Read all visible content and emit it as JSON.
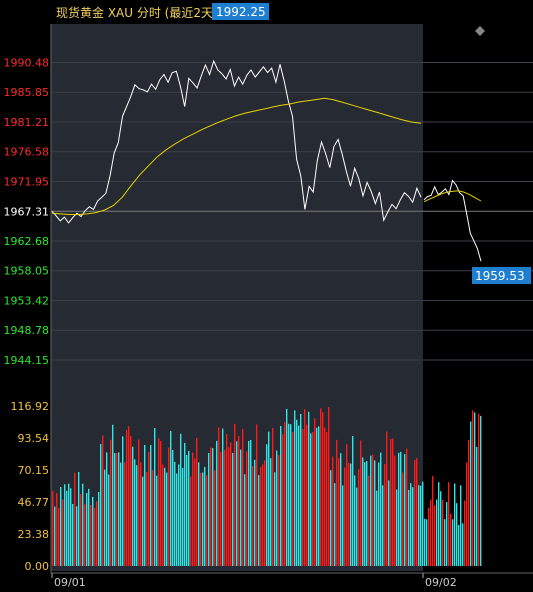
{
  "chart_title": "现货黄金 XAU 分时 (最近2天)",
  "colors": {
    "background": "#000000",
    "plot_bg_day1": "#262a33",
    "price_line": "#ffffff",
    "avg_line": "#e6d200",
    "up": "#ff1a1a",
    "down": "#33e6e6",
    "axis_red": "#ff2a2a",
    "axis_green": "#2ee82e",
    "axis_white": "#ffffff",
    "axis_yellow": "#f0c040",
    "badge_bg": "#1e7fd0",
    "title_color": "#f0d060"
  },
  "chart_data": [
    {
      "type": "line",
      "name": "price",
      "title": "现货黄金 XAU 分时 (最近2天)",
      "x_ticks": [
        "09/01",
        "09/02"
      ],
      "y_ticks": [
        "1990.48",
        "1985.85",
        "1981.21",
        "1976.58",
        "1971.95",
        "1967.31",
        "1962.68",
        "1958.05",
        "1953.42",
        "1948.78",
        "1944.15"
      ],
      "y_range": [
        1941.5,
        1994.6
      ],
      "reference": 1967.31,
      "high_label": "1992.25",
      "last_label": "1959.53",
      "series": [
        {
          "values": [
            1967.3,
            1966.6,
            1965.8,
            1966.4,
            1965.5,
            1966.3,
            1967.0,
            1966.5,
            1967.4,
            1968.0,
            1967.6,
            1968.9,
            1969.5,
            1970.1,
            1972.8,
            1976.4,
            1978.0,
            1982.1,
            1983.6,
            1985.2,
            1987.0,
            1986.4,
            1986.2,
            1985.9,
            1987.1,
            1986.3,
            1987.8,
            1988.6,
            1987.4,
            1988.9,
            1989.1,
            1986.7,
            1983.6,
            1988.0,
            1987.3,
            1986.5,
            1988.4,
            1990.1,
            1988.6,
            1990.7,
            1989.3,
            1988.7,
            1987.9,
            1989.4,
            1986.8,
            1988.2,
            1987.1,
            1988.5,
            1989.3,
            1988.2,
            1989.0,
            1989.8,
            1988.9,
            1989.6,
            1987.4,
            1990.2,
            1987.6,
            1984.5,
            1982.1,
            1975.4,
            1972.8,
            1967.6,
            1971.2,
            1970.3,
            1975.2,
            1978.1,
            1976.3,
            1974.1,
            1977.4,
            1978.5,
            1976.2,
            1973.5,
            1971.2,
            1974.0,
            1972.4,
            1969.7,
            1971.8,
            1970.4,
            1968.5,
            1970.3,
            1965.9,
            1967.2,
            1968.4,
            1967.7,
            1969.1,
            1970.2,
            1969.6,
            1968.7,
            1970.9,
            1969.5
          ],
          "day2_values": [
            1969.1,
            1969.6,
            1969.8,
            1971.1,
            1969.9,
            1970.3,
            1970.8,
            1969.9,
            1972.1,
            1971.4,
            1970.2,
            1969.7,
            1966.8,
            1963.9,
            1962.7,
            1961.5,
            1959.53
          ]
        },
        {
          "name": "avg",
          "values": [
            1967.0,
            1966.9,
            1966.8,
            1966.8,
            1966.9,
            1967.1,
            1967.5,
            1968.2,
            1969.5,
            1971.3,
            1973.0,
            1974.4,
            1975.8,
            1976.9,
            1977.8,
            1978.6,
            1979.3,
            1980.0,
            1980.6,
            1981.2,
            1981.7,
            1982.2,
            1982.6,
            1982.9,
            1983.2,
            1983.5,
            1983.8,
            1984.0,
            1984.3,
            1984.5,
            1984.7,
            1984.9,
            1984.7,
            1984.3,
            1983.9,
            1983.5,
            1983.1,
            1982.7,
            1982.3,
            1981.9,
            1981.5,
            1981.2,
            1981.0
          ],
          "day2_values": [
            1968.8,
            1969.2,
            1969.6,
            1970.0,
            1970.3,
            1970.4,
            1970.5,
            1970.3,
            1969.9,
            1969.4,
            1968.9
          ]
        }
      ]
    },
    {
      "type": "bar",
      "name": "volume",
      "y_ticks": [
        "116.92",
        "93.54",
        "70.15",
        "46.77",
        "23.38",
        "0.00"
      ],
      "y_range": [
        0,
        116.92
      ],
      "note": "volume bars (red = price up, cyan = price down), values generated as approximate pattern"
    }
  ]
}
